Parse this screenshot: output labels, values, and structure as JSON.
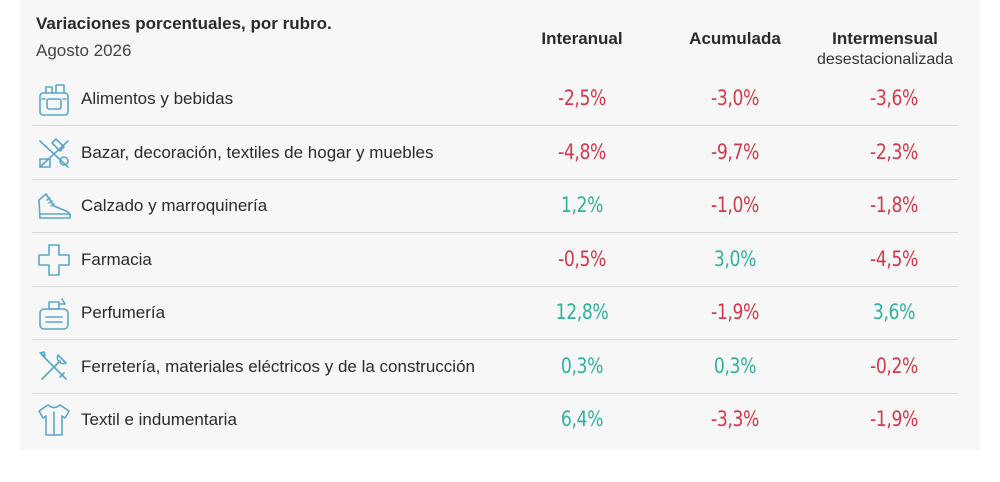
{
  "chart_data": {
    "type": "table",
    "title": "Variaciones porcentuales, por rubro.",
    "subtitle": "Agosto 2026",
    "columns": [
      {
        "label": "Interanual",
        "sublabel": ""
      },
      {
        "label": "Acumulada",
        "sublabel": ""
      },
      {
        "label": "Intermensual",
        "sublabel": "desestacionalizada"
      }
    ],
    "rows": [
      {
        "label": "Alimentos y bebidas",
        "icon": "grocery-icon",
        "values": [
          "-2,5%",
          "-3,0%",
          "-3,6%"
        ]
      },
      {
        "label": "Bazar, decoración, textiles de hogar y muebles",
        "icon": "home-goods-icon",
        "values": [
          "-4,8%",
          "-9,7%",
          "-2,3%"
        ]
      },
      {
        "label": "Calzado y marroquinería",
        "icon": "shoe-icon",
        "values": [
          "1,2%",
          "-1,0%",
          "-1,8%"
        ]
      },
      {
        "label": "Farmacia",
        "icon": "pharmacy-cross-icon",
        "values": [
          "-0,5%",
          "3,0%",
          "-4,5%"
        ]
      },
      {
        "label": "Perfumería",
        "icon": "perfume-icon",
        "values": [
          "12,8%",
          "-1,9%",
          "3,6%"
        ]
      },
      {
        "label": "Ferretería, materiales eléctricos y de la construcción",
        "icon": "tools-icon",
        "values": [
          "0,3%",
          "0,3%",
          "-0,2%"
        ]
      },
      {
        "label": "Textil e indumentaria",
        "icon": "shirt-icon",
        "values": [
          "6,4%",
          "-3,3%",
          "-1,9%"
        ]
      }
    ],
    "colors": {
      "negative": "#d13a4a",
      "positive": "#2fb29a",
      "icon": "#5aa7c9"
    }
  }
}
